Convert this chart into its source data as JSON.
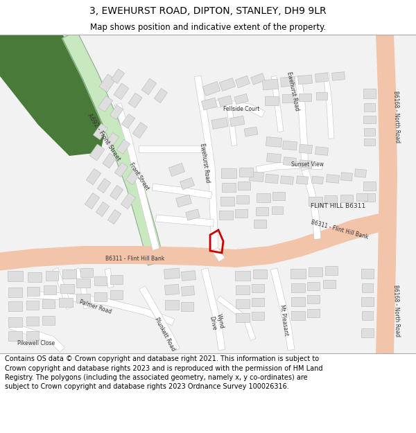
{
  "title_line1": "3, EWEHURST ROAD, DIPTON, STANLEY, DH9 9LR",
  "title_line2": "Map shows position and indicative extent of the property.",
  "copyright_text": "Contains OS data © Crown copyright and database right 2021. This information is subject to Crown copyright and database rights 2023 and is reproduced with the permission of HM Land Registry. The polygons (including the associated geometry, namely x, y co-ordinates) are subject to Crown copyright and database rights 2023 Ordnance Survey 100026316.",
  "map_bg": "#f2f2f2",
  "road_major_color": "#f2c4aa",
  "road_minor_color": "#ffffff",
  "building_color": "#dedede",
  "building_outline": "#c0c0c0",
  "green_area_color": "#4a7a3a",
  "road_a692_color": "#c8e8c0",
  "road_b6168_color": "#f2c4aa",
  "road_b6311_color": "#f2c4aa",
  "property_outline_color": "#cc0000",
  "title_fontsize": 10,
  "subtitle_fontsize": 8.5,
  "copyright_fontsize": 7,
  "fig_width": 6.0,
  "fig_height": 6.25,
  "dpi": 100
}
